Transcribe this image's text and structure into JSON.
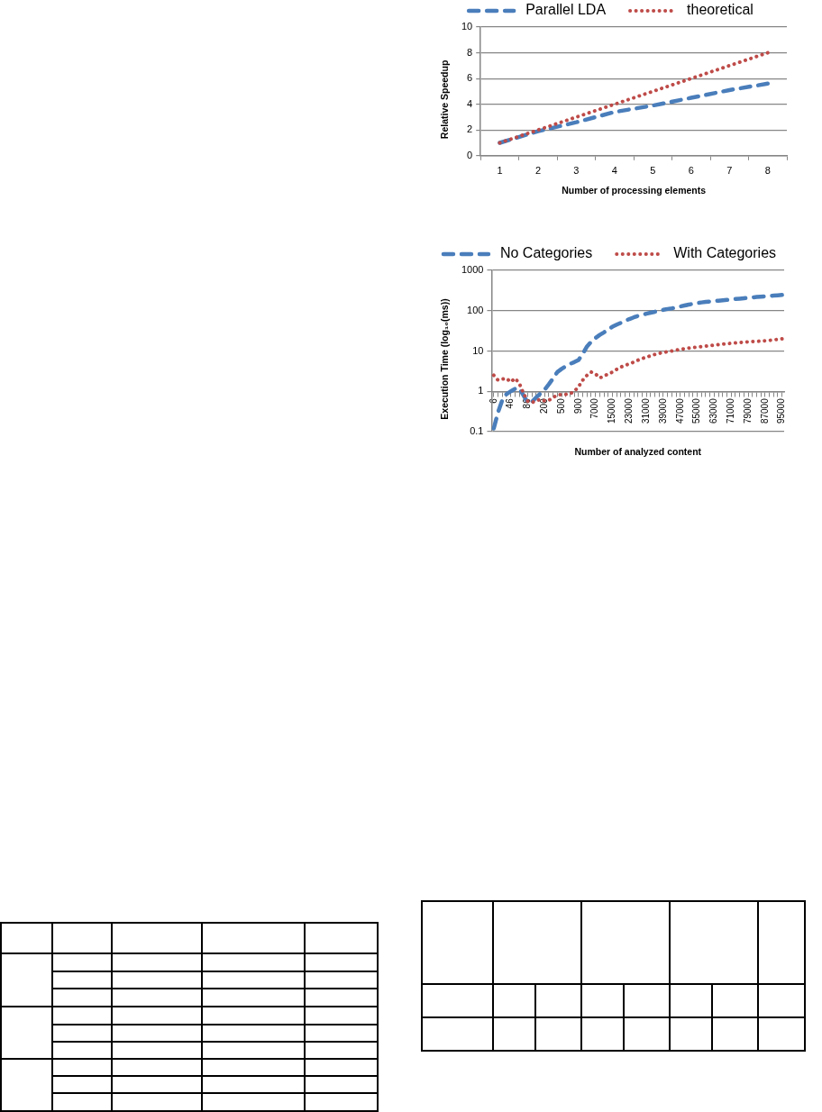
{
  "chart_data": [
    {
      "type": "line",
      "categories": [
        "1",
        "2",
        "3",
        "4",
        "5",
        "6",
        "7",
        "8"
      ],
      "xlabel": "Number of processing elements",
      "ylabel": "Relative Speedup",
      "ylim": [
        0,
        10
      ],
      "yticks": [
        0,
        2,
        4,
        6,
        8,
        10
      ],
      "grid": "y",
      "legend": "top",
      "marker": "none",
      "series": [
        {
          "name": "Parallel LDA",
          "color": "#4a7ebb",
          "line_style": "dashed",
          "values": [
            1,
            1.9,
            2.6,
            3.4,
            3.9,
            4.5,
            5.1,
            5.6
          ]
        },
        {
          "name": "theoretical",
          "color": "#be4b48",
          "line_style": "dotted",
          "values": [
            1,
            2,
            3,
            4,
            5,
            6,
            7,
            8
          ]
        }
      ]
    },
    {
      "type": "line",
      "categories": [
        "6",
        null,
        null,
        null,
        "46",
        null,
        null,
        null,
        "86",
        null,
        null,
        null,
        "200",
        null,
        null,
        null,
        "500",
        null,
        null,
        null,
        "900",
        null,
        null,
        null,
        "7000",
        null,
        null,
        null,
        "15000",
        null,
        null,
        null,
        "23000",
        null,
        null,
        null,
        "31000",
        null,
        null,
        null,
        "39000",
        null,
        null,
        null,
        "47000",
        null,
        null,
        null,
        "55000",
        null,
        null,
        null,
        "63000",
        null,
        null,
        null,
        "71000",
        null,
        null,
        null,
        "79000",
        null,
        null,
        null,
        "87000",
        null,
        null,
        null,
        "95000"
      ],
      "xlabel": "Number of analyzed content",
      "ylabel": "Execution Time (log₁₀(ms))",
      "log": "y",
      "ylim": [
        0.1,
        1000
      ],
      "yticks": [
        0.1,
        1,
        10,
        100,
        1000
      ],
      "grid": "y",
      "legend": "top",
      "marker": "none",
      "series": [
        {
          "name": "No Categories",
          "color": "#4a7ebb",
          "line_style": "dashed",
          "values": [
            0.12,
            0.3,
            0.6,
            0.85,
            1.0,
            1.15,
            1.2,
            0.8,
            0.52,
            0.55,
            0.7,
            0.88,
            1.1,
            1.5,
            2.1,
            3,
            3.6,
            4.2,
            4.8,
            5.3,
            6,
            8.5,
            13,
            17,
            21,
            25,
            29,
            34,
            40,
            45,
            50,
            56,
            62,
            68,
            74,
            79,
            84,
            89,
            94,
            100,
            105,
            110,
            114,
            120,
            127,
            134,
            141,
            148,
            154,
            160,
            165,
            169,
            173,
            177,
            181,
            185,
            190,
            194,
            198,
            203,
            208,
            213,
            218,
            222,
            227,
            232,
            236,
            241,
            245
          ]
        },
        {
          "name": "With Categories",
          "color": "#be4b48",
          "line_style": "dotted",
          "values": [
            2.5,
            1.9,
            2,
            2.1,
            1.7,
            2.1,
            1.6,
            0.9,
            0.57,
            0.53,
            0.58,
            0.63,
            0.58,
            0.6,
            0.7,
            0.81,
            0.83,
            0.84,
            0.87,
            1,
            1.3,
            1.9,
            2.5,
            3,
            2.7,
            2.15,
            2.4,
            2.7,
            3,
            3.5,
            4,
            4.4,
            4.8,
            5.3,
            5.9,
            6.5,
            7,
            7.6,
            8.2,
            8.7,
            9.2,
            9.6,
            10,
            10.5,
            11,
            11.4,
            11.8,
            12.2,
            12.5,
            12.8,
            13.2,
            13.6,
            14,
            14.4,
            14.8,
            15.2,
            15.5,
            15.8,
            16.2,
            16.6,
            16.9,
            17.2,
            17.4,
            17.6,
            17.9,
            18.3,
            18.8,
            19.4,
            20
          ]
        }
      ]
    }
  ]
}
